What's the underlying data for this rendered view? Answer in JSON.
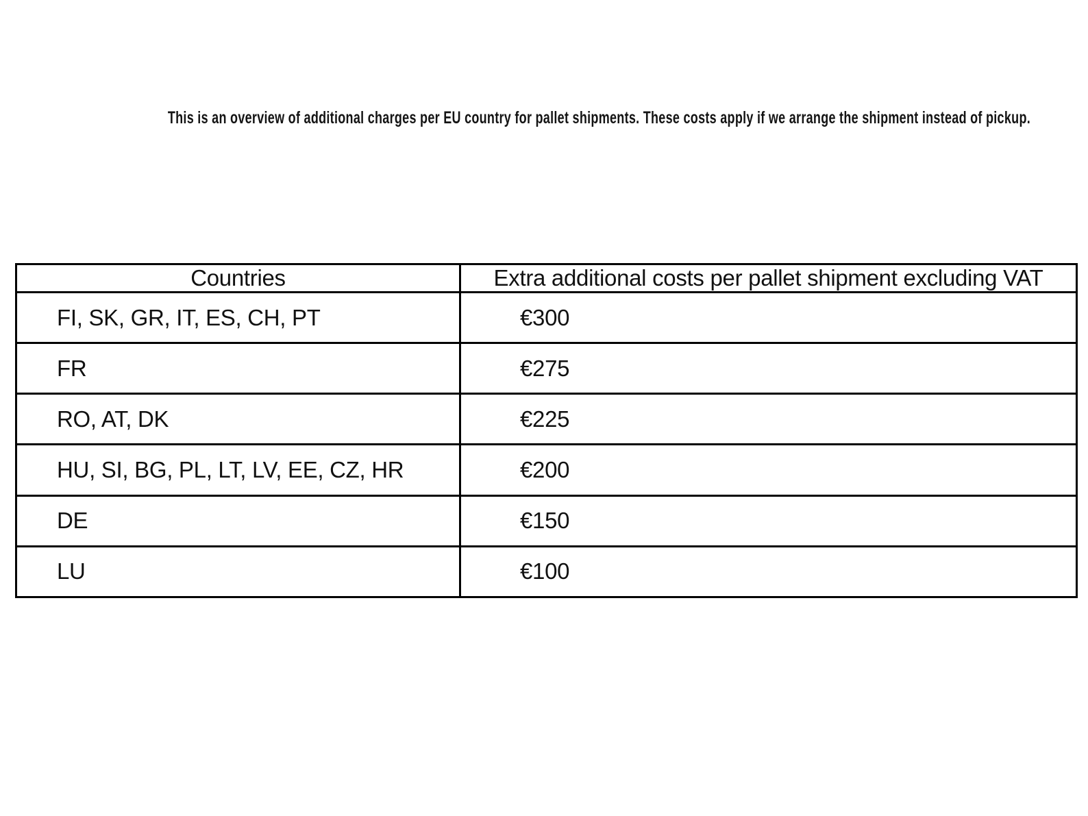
{
  "page": {
    "background_color": "#ffffff",
    "title": "This is an overview of additional charges per EU country for pallet shipments. These costs apply if we arrange the shipment instead of pickup."
  },
  "table": {
    "border_color": "#000000",
    "text_color": "#111111",
    "columns": {
      "countries_header": "Countries",
      "costs_header": "Extra additional costs per pallet shipment excluding VAT"
    },
    "rows": [
      {
        "countries": "FI, SK, GR, IT, ES, CH, PT",
        "cost": "€300"
      },
      {
        "countries": "FR",
        "cost": "€275"
      },
      {
        "countries": "RO, AT, DK",
        "cost": "€225"
      },
      {
        "countries": "HU, SI, BG, PL, LT, LV, EE, CZ, HR",
        "cost": "€200"
      },
      {
        "countries": "DE",
        "cost": "€150"
      },
      {
        "countries": "LU",
        "cost": "€100"
      }
    ]
  }
}
